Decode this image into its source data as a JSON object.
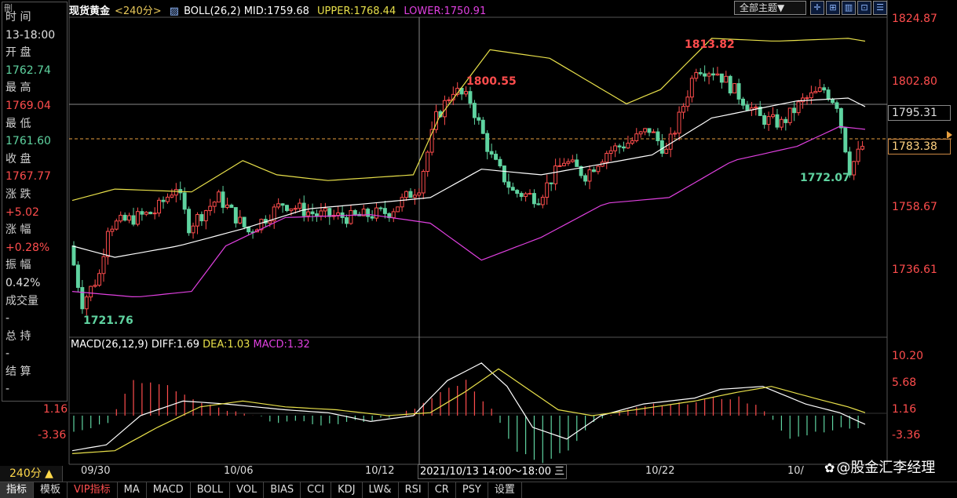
{
  "header": {
    "title": "现货黄金",
    "period": "<240分>",
    "boll": "BOLL(26,2) MID:1759.68",
    "upper": "UPPER:1768.44",
    "lower": "LOWER:1750.91",
    "theme_select": "全部主题▼"
  },
  "info_panel": {
    "close_tab": "刪",
    "time_label": "时 间",
    "time_value": "13-18:00",
    "open_label": "开 盘",
    "open_value": "1762.74",
    "high_label": "最 高",
    "high_value": "1769.04",
    "low_label": "最 低",
    "low_value": "1761.60",
    "close_label": "收 盘",
    "close_value": "1767.77",
    "change_label": "涨 跌",
    "change_value": "+5.02",
    "change_pct_label": "涨 幅",
    "change_pct_value": "+0.28%",
    "amplitude_label": "振 幅",
    "amplitude_value": "0.42%",
    "volume_label": "成交量",
    "volume_value": "-",
    "oi_label": "总 持",
    "oi_value": "-",
    "settle_label": "结 算",
    "settle_value": "-"
  },
  "price_axis": {
    "p1": "1824.87",
    "p2": "1802.80",
    "p3": "1795.31",
    "p4": "1783.38",
    "p5": "1758.67",
    "p6": "1736.61"
  },
  "annotations": {
    "high1": "1813.82",
    "high2": "1800.55",
    "low1": "1721.76",
    "low2": "1772.07"
  },
  "macd": {
    "name": "MACD(26,12,9)",
    "diff": "DIFF:1.69",
    "dea": "DEA:1.03",
    "macd": "MACD:1.32",
    "axis_right": [
      "10.20",
      "5.68",
      "1.16",
      "-3.36"
    ],
    "axis_left": [
      "1.16",
      "-3.36"
    ]
  },
  "dates": {
    "d1": "09/30",
    "d2": "10/06",
    "d3": "10/12",
    "d4": "10/22",
    "d5": "10/",
    "cursor": "2021/10/13  14:00～18:00 三"
  },
  "period_select": "240分 ▲",
  "tabs": [
    "指标",
    "模板",
    "VIP指标",
    "MA",
    "MACD",
    "BOLL",
    "VOL",
    "BIAS",
    "CCI",
    "KDJ",
    "LW&",
    "RSI",
    "CR",
    "PSY",
    "设置"
  ],
  "watermark": "@股金汇李经理",
  "colors": {
    "up": "#ff4d4d",
    "down": "#5fd3a0",
    "upper_band": "#e8e04a",
    "lower_band": "#e040e0",
    "mid_band": "#ffffff"
  }
}
